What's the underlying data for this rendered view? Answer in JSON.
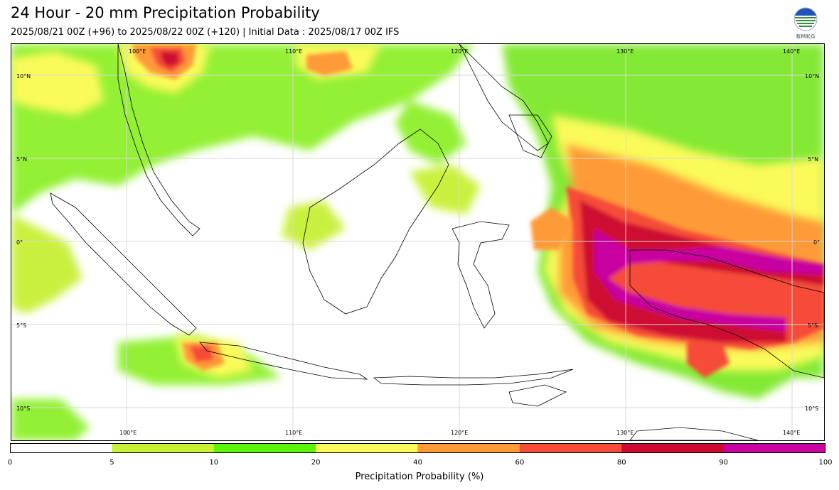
{
  "header": {
    "title": "24 Hour - 20 mm Precipitation Probability",
    "subtitle": "2025/08/21 00Z (+96) to 2025/08/22 00Z (+120) | Initial Data : 2025/08/17 00Z IFS",
    "logo_text": "BMKG"
  },
  "map": {
    "lon_labels_top": [
      "100°E",
      "110°E",
      "120°E",
      "130°E",
      "140°E"
    ],
    "lon_labels_bottom": [
      "100°E",
      "110°E",
      "120°E",
      "130°E",
      "140°E"
    ],
    "lat_labels_left": [
      "10°N",
      "5°N",
      "0°",
      "5°S",
      "10°S"
    ],
    "lat_labels_right": [
      "10°N",
      "5°N",
      "0°",
      "5°S",
      "10°S"
    ]
  },
  "colorbar": {
    "title": "Precipitation Probability (%)",
    "ticks": [
      "0",
      "5",
      "10",
      "20",
      "40",
      "60",
      "80",
      "90",
      "100"
    ],
    "colors": [
      "#ffffff",
      "#c8f035",
      "#5cf50a",
      "#fafa5a",
      "#ff9a37",
      "#f54b37",
      "#cd0a32",
      "#c800a0"
    ]
  }
}
